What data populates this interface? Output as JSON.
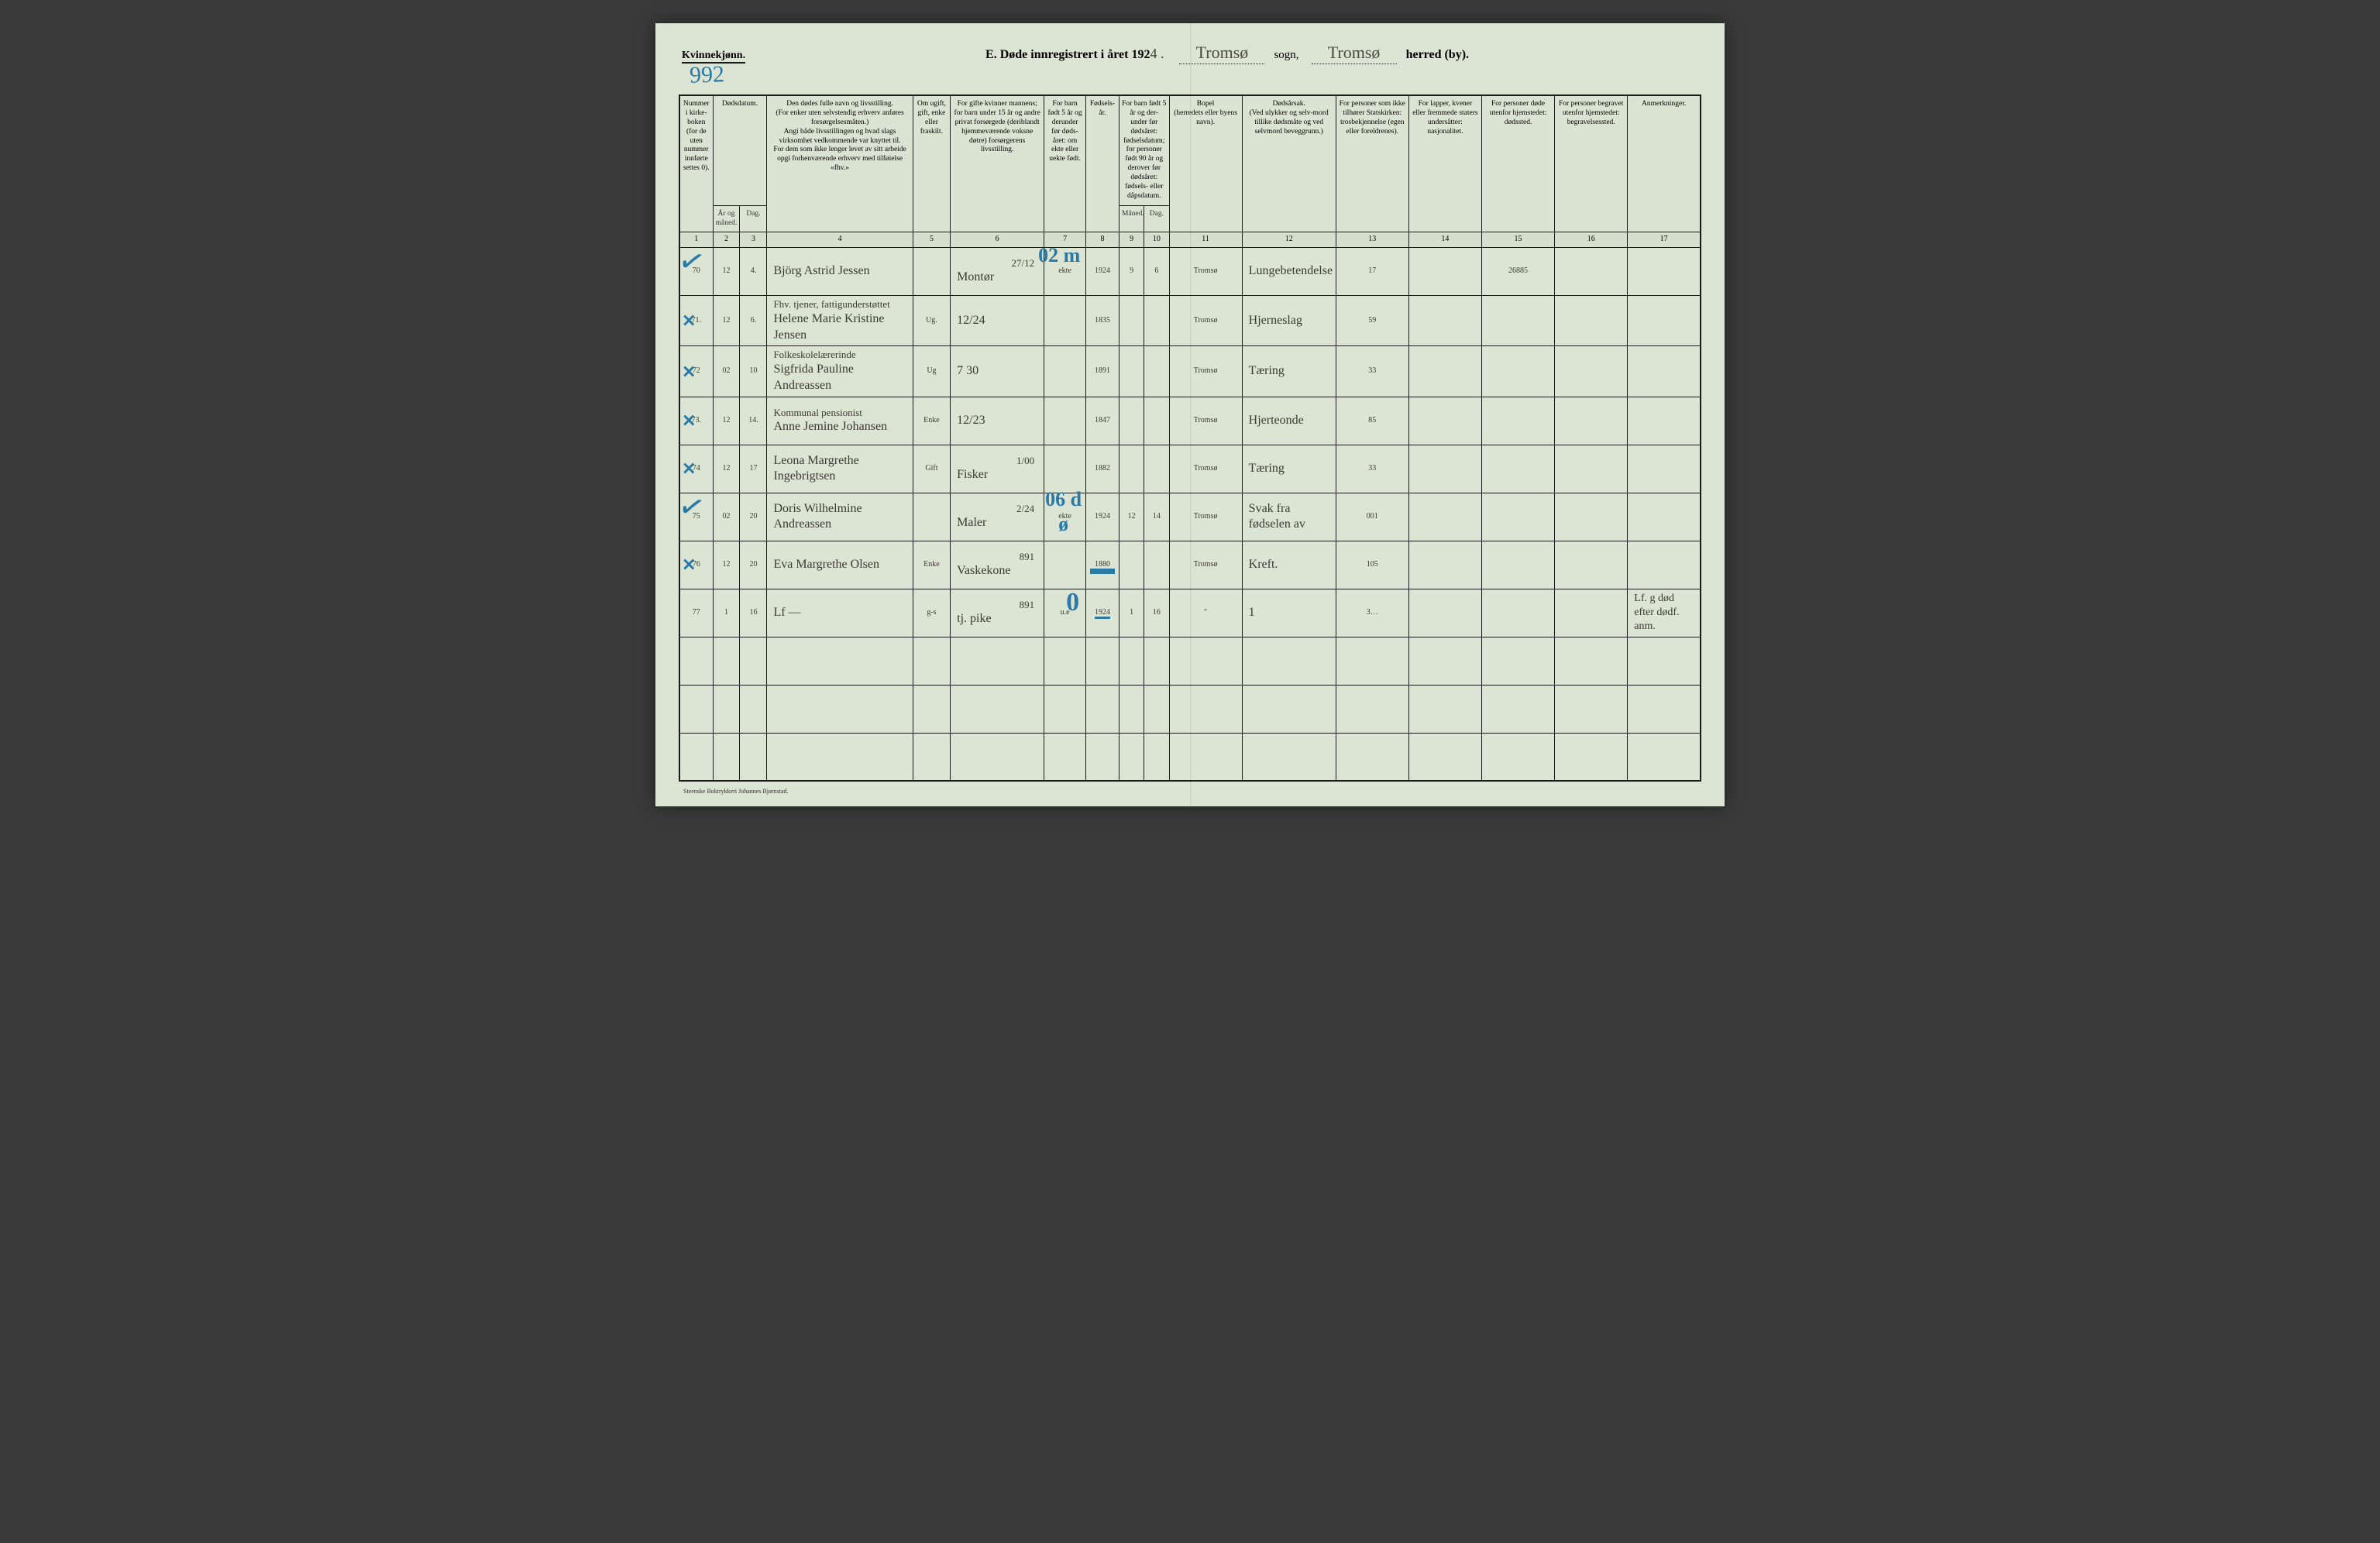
{
  "header": {
    "gender": "Kvinnekjønn.",
    "page_number_hand": "992",
    "title_prefix": "E.  Døde innregistrert i året 192",
    "year_suffix": "4 .",
    "sogn_value": "Tromsø",
    "sogn_label": "sogn,",
    "herred_value": "Tromsø",
    "herred_label": "herred (by)."
  },
  "columns": {
    "h1": "Nummer i kirke-boken (for de uten nummer innførte settes 0).",
    "h2_group": "Dødsdatum.",
    "h2a": "År og måned.",
    "h2b": "Dag.",
    "h4": "Den dødes fulle navn og livsstilling.\n(For enker uten selvstendig erhverv anføres forsørgelsesmåten.)\nAngi både livsstillingen og hvad slags virksomhet vedkommende var knyttet til.\nFor dem som ikke lenger levet av sitt arbeide opgi forhenværende erhverv med tilføielse «fhv.»",
    "h5": "Om ugift, gift, enke eller fraskilt.",
    "h6": "For gifte kvinner mannens; for barn under 15 år og andre privat forsørgede (deriblandt hjemmeværende voksne døtre) forsørgerens livsstilling.",
    "h7": "For barn født 5 år og derunder før døds-året: om ekte eller uekte født.",
    "h8": "Fødsels-år.",
    "h9_group": "For barn født 5 år og der-under før dødsåret: fødselsdatum; for personer født 90 år og derover før dødsåret: fødsels- eller dåpsdatum.",
    "h9a": "Måned.",
    "h9b": "Dag.",
    "h11": "Bopel\n(herredets eller byens navn).",
    "h12": "Dødsårsak.\n(Ved ulykker og selv-mord tillike dødsmåte og ved selvmord beveggrunn.)",
    "h13": "For personer som ikke tilhører Statskirken: trosbekjennelse (egen eller foreldrenes).",
    "h14": "For lapper, kvener eller fremmede staters undersåtter: nasjonalitet.",
    "h15": "For personer døde utenfor hjemstedet: dødssted.",
    "h16": "For personer begravet utenfor hjemstedet: begravelsessted.",
    "h17": "Anmerkninger."
  },
  "col_numbers": [
    "1",
    "2",
    "3",
    "4",
    "5",
    "6",
    "7",
    "8",
    "9",
    "10",
    "11",
    "12",
    "13",
    "14",
    "15",
    "16",
    "17"
  ],
  "rows": [
    {
      "mark": "slash",
      "num": "70",
      "mon": "12",
      "day": "4.",
      "name": "Björg Astrid Jessen",
      "status": "",
      "occ_top": "27/12",
      "occ": "Montør",
      "ekte": "ekte",
      "birth": "1924",
      "bm": "9",
      "bd": "6",
      "place": "Tromsø",
      "cause": "Lungebetendelse",
      "c13": "17",
      "c15": "26885",
      "blue_over": "02 m",
      "blue_pos": "top:-6px;left:-8px;"
    },
    {
      "mark": "x",
      "num": "71.",
      "mon": "12",
      "day": "6.",
      "name_top": "Fhv. tjener, fattigunderstøttet",
      "name": "Helene Marie Kristine Jensen",
      "status": "Ug.",
      "occ": "12/24",
      "ekte": "",
      "birth": "1835",
      "bm": "",
      "bd": "",
      "place": "Tromsø",
      "cause": "Hjerneslag",
      "c13": "59"
    },
    {
      "mark": "x",
      "num": "72",
      "mon": "02",
      "day": "10",
      "name_top": "Folkeskolelærerinde",
      "name": "Sigfrida Pauline Andreassen",
      "status": "Ug",
      "occ": "7 30",
      "ekte": "",
      "birth": "1891",
      "bm": "",
      "bd": "",
      "place": "Tromsø",
      "cause": "Tæring",
      "c13": "33"
    },
    {
      "mark": "x",
      "num": "73.",
      "mon": "12",
      "day": "14.",
      "name_top": "Kommunal pensionist",
      "name": "Anne Jemine Johansen",
      "status": "Enke",
      "occ": "12/23",
      "ekte": "",
      "birth": "1847",
      "bm": "",
      "bd": "",
      "place": "Tromsø",
      "cause": "Hjerteonde",
      "c13": "85"
    },
    {
      "mark": "x",
      "num": "74",
      "mon": "12",
      "day": "17",
      "name": "Leona Margrethe Ingebrigtsen",
      "status": "Gift",
      "occ_top": "1/00",
      "occ": "Fisker",
      "ekte": "",
      "birth": "1882",
      "bm": "",
      "bd": "",
      "place": "Tromsø",
      "cause": "Tæring",
      "c13": "33"
    },
    {
      "mark": "slash",
      "num": "75",
      "mon": "02",
      "day": "20",
      "name": "Doris Wilhelmine Andreassen",
      "status": "",
      "occ_top": "2/24",
      "occ": "Maler",
      "ekte": "ekte",
      "birth": "1924",
      "bm": "12",
      "bd": "14",
      "place": "Tromsø",
      "cause": "Svak fra fødselen av",
      "c13": "001",
      "blue_over": "06 d ø",
      "blue_pos": "top:-8px;left:-4px;"
    },
    {
      "mark": "x",
      "num": "76",
      "mon": "12",
      "day": "20",
      "name": "Eva Margrethe Olsen",
      "status": "Enke",
      "occ_top": "891",
      "occ": "Vaskekone",
      "ekte": "",
      "birth": "1880",
      "bm": "",
      "bd": "",
      "place": "Tromsø",
      "cause": "Kreft.",
      "c13": "105",
      "double_line": true
    },
    {
      "mark": "",
      "num": "77",
      "mon": "1",
      "day": "16",
      "name": "Lf —",
      "status": "g-s",
      "occ_top": "891",
      "occ": "tj. pike",
      "ekte": "u.e",
      "birth": "1924",
      "bm": "1",
      "bd": "16",
      "place": "\"",
      "cause": "1",
      "c13": "3…",
      "c17": "Lf. g død efter dødf. anm.",
      "blue_over": "0",
      "blue_pos": "top:-4px;left:28px;font-size:34px;",
      "blue_underline_birth": true
    }
  ],
  "empty_rows": 3,
  "footer": "Steenske Boktrykkeri Johannes Bjørnstad."
}
